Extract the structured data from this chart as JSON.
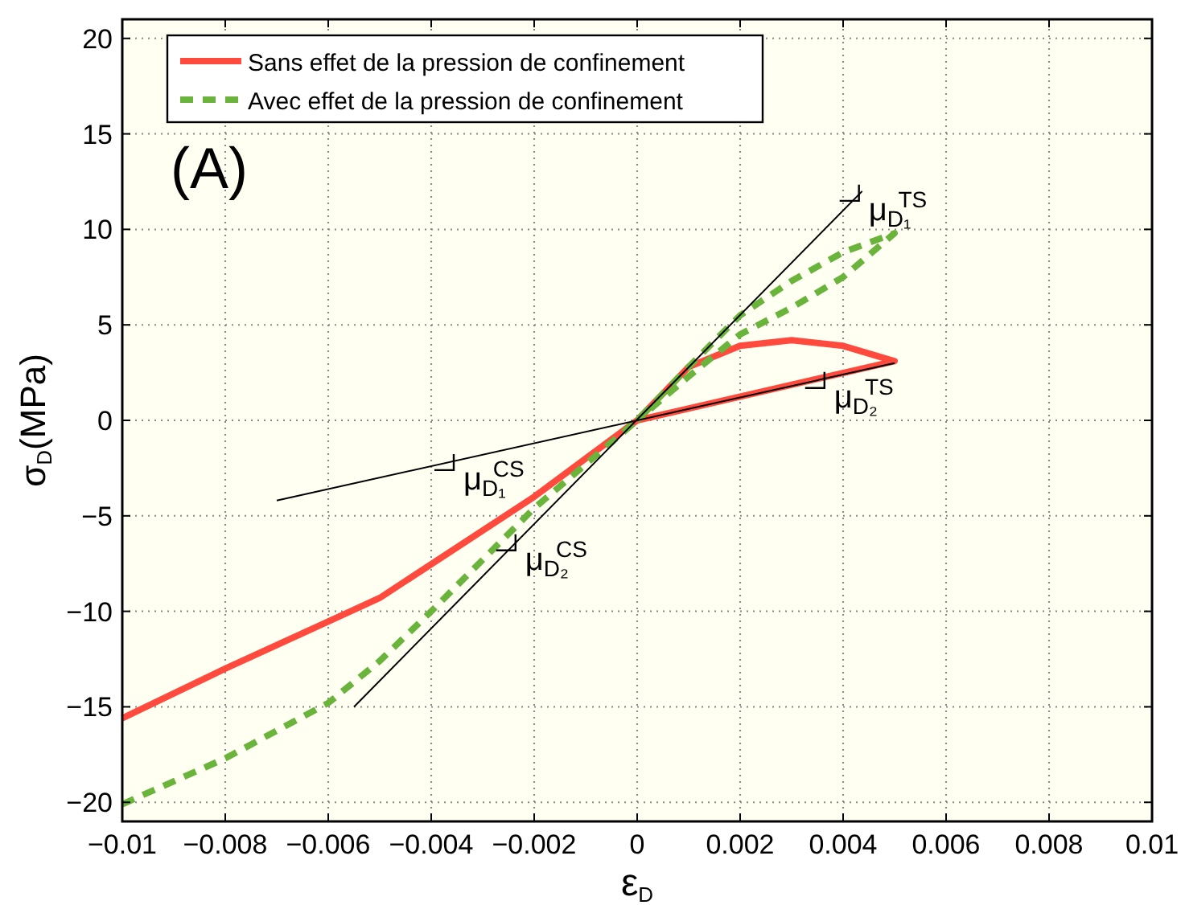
{
  "chart_data": {
    "type": "line",
    "xlabel": "ε$_{D}$",
    "ylabel": "σ$_{D}$(MPa)",
    "xlim": [
      -0.01,
      0.01
    ],
    "ylim": [
      -21,
      21
    ],
    "xticks": [
      {
        "value": -0.01,
        "label": "−0.01"
      },
      {
        "value": -0.008,
        "label": "−0.008"
      },
      {
        "value": -0.006,
        "label": "−0.006"
      },
      {
        "value": -0.004,
        "label": "−0.004"
      },
      {
        "value": -0.002,
        "label": "−0.002"
      },
      0,
      0.002,
      0.004,
      0.006,
      0.008,
      0.01
    ],
    "yticks": [
      {
        "value": -20,
        "label": "−20"
      },
      {
        "value": -15,
        "label": "−15"
      },
      {
        "value": -10,
        "label": "−10"
      },
      {
        "value": -5,
        "label": "−5"
      },
      0,
      5,
      10,
      15,
      20
    ],
    "grid": true,
    "legend": "top left",
    "marker": "none",
    "series": [
      {
        "name": "Sans effet de la pression de confinement",
        "color": "#ff4a3d",
        "line_style": "solid",
        "x": [
          -0.01,
          -0.008,
          -0.005,
          -0.002,
          0,
          0.001,
          0.002,
          0.003,
          0.004,
          0.005,
          0
        ],
        "values": [
          -15.6,
          -13.0,
          -9.3,
          -4.0,
          0,
          2.8,
          3.9,
          4.2,
          3.9,
          3.1,
          0
        ]
      },
      {
        "name": "Avec effet de la pression de confinement",
        "color": "#6ab43c",
        "line_style": "dashed",
        "x": [
          -0.01,
          -0.008,
          -0.006,
          -0.005,
          -0.004,
          -0.002,
          0,
          0.001,
          0.002,
          0.003,
          0.004,
          0.005,
          0.004,
          0.003,
          0.002,
          0.001,
          0
        ],
        "values": [
          -20.1,
          -17.7,
          -14.8,
          -12.6,
          -10.0,
          -4.6,
          0,
          2.8,
          5.5,
          7.3,
          8.8,
          9.8,
          7.5,
          5.9,
          4.5,
          2.3,
          0
        ]
      },
      {
        "color": "#000000",
        "line_style": "solid",
        "x": [
          -0.0055,
          0.00437
        ],
        "values": [
          -15,
          12
        ]
      },
      {
        "color": "#000000",
        "line_style": "solid",
        "x": [
          -0.007,
          0.005
        ],
        "values": [
          -4.2,
          3.0
        ]
      }
    ],
    "annotations": [
      "(A)",
      {
        "text": "μ$_{D₁}$$^{TS}$",
        "x": 0.00437,
        "y": 12
      },
      {
        "text": "μ$_{D₂}$$^{TS}$",
        "x": 0.0037,
        "y": 2.2
      },
      {
        "text": "μ$_{D₁}$$^{CS}$",
        "x": -0.0035,
        "y": -2.1
      },
      {
        "text": "μ$_{D₂}$$^{CS}$",
        "x": -0.0023,
        "y": -6.3
      }
    ]
  }
}
